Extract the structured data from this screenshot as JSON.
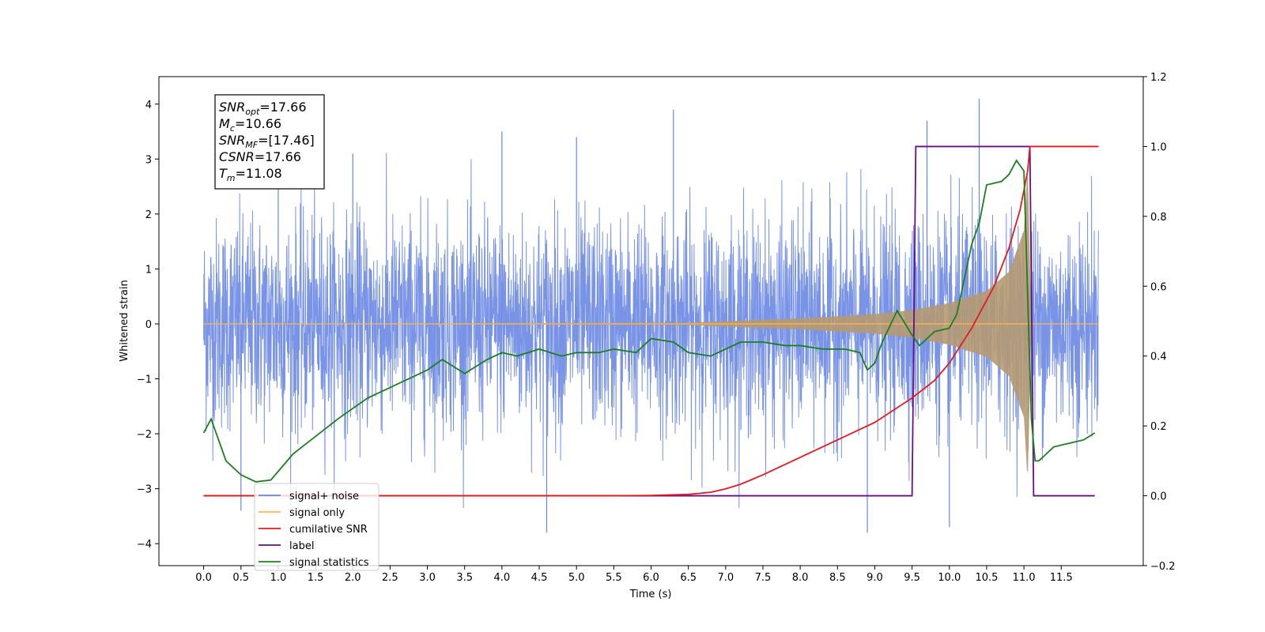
{
  "chart_data": {
    "type": "line",
    "xlabel": "Time (s)",
    "ylabel": "Whitened strain",
    "xlim": [
      -0.6,
      12.6
    ],
    "ylim": [
      -4.4,
      4.5
    ],
    "ylim_right": [
      -0.2,
      1.2
    ],
    "x_ticks": [
      "0.0",
      "0.5",
      "1.0",
      "1.5",
      "2.0",
      "2.5",
      "3.0",
      "3.5",
      "4.0",
      "4.5",
      "5.0",
      "5.5",
      "6.0",
      "6.5",
      "7.0",
      "7.5",
      "8.0",
      "8.5",
      "9.0",
      "9.5",
      "10.0",
      "10.5",
      "11.0",
      "11.5"
    ],
    "y_ticks_left": [
      "−4",
      "−3",
      "−2",
      "−1",
      "0",
      "1",
      "2",
      "3",
      "4"
    ],
    "y_ticks_right": [
      "−0.2",
      "0.0",
      "0.2",
      "0.4",
      "0.6",
      "0.8",
      "1.0",
      "1.2"
    ],
    "annotation": {
      "lines": [
        {
          "sym": "SNR",
          "sub": "opt",
          "val": "=17.66"
        },
        {
          "sym": "M",
          "sub": "c",
          "val": "=10.66"
        },
        {
          "sym": "SNR",
          "sub": "MF",
          "val": "=[17.46]"
        },
        {
          "sym": "CSNR",
          "sub": "",
          "val": "=17.66"
        },
        {
          "sym": "T",
          "sub": "m",
          "val": "=11.08"
        }
      ]
    },
    "legend": {
      "placement": "lower-left",
      "items": [
        {
          "label": "signal+ noise",
          "color": "#6a87e3"
        },
        {
          "label": "signal only",
          "color": "#ffb74d"
        },
        {
          "label": "cumilative SNR",
          "color": "#e8191b"
        },
        {
          "label": "label",
          "color": "#6a0f83"
        },
        {
          "label": "signal statistics",
          "color": "#1b7f1b"
        }
      ]
    },
    "series": [
      {
        "name": "signal+ noise",
        "axis": "left",
        "color": "#6a87e3",
        "x_range": [
          0.0,
          12.0
        ],
        "amplitude_envelope": {
          "x": [
            0,
            12
          ],
          "y": [
            3.4,
            3.4
          ]
        },
        "extreme_peaks": [
          [
            0.5,
            -3.4
          ],
          [
            1.0,
            2.9
          ],
          [
            2.0,
            3.1
          ],
          [
            4.0,
            3.5
          ],
          [
            5.0,
            3.4
          ],
          [
            6.3,
            3.9
          ],
          [
            9.7,
            3.7
          ],
          [
            10.4,
            4.1
          ],
          [
            4.6,
            -3.8
          ],
          [
            8.9,
            -3.8
          ],
          [
            10.0,
            -3.7
          ]
        ]
      },
      {
        "name": "signal only",
        "axis": "left",
        "color": "#ffb74d",
        "chirp_envelope": {
          "x": [
            0,
            6.5,
            7.0,
            8.0,
            9.0,
            9.5,
            10.0,
            10.5,
            10.8,
            11.0,
            11.05,
            11.1,
            12.0
          ],
          "y": [
            0,
            0.02,
            0.05,
            0.1,
            0.18,
            0.25,
            0.38,
            0.6,
            0.95,
            1.7,
            2.9,
            0,
            0
          ]
        }
      },
      {
        "name": "cumilative SNR",
        "axis": "right",
        "color": "#e8191b",
        "x": [
          0,
          5.5,
          6.0,
          6.5,
          6.8,
          7.0,
          7.2,
          7.5,
          8.0,
          8.5,
          9.0,
          9.5,
          9.8,
          10.0,
          10.3,
          10.6,
          10.8,
          10.95,
          11.05,
          11.08,
          11.08,
          12.0
        ],
        "y": [
          0.0,
          0.0,
          0.001,
          0.004,
          0.01,
          0.02,
          0.033,
          0.06,
          0.11,
          0.16,
          0.21,
          0.28,
          0.33,
          0.38,
          0.48,
          0.6,
          0.71,
          0.82,
          0.93,
          1.0,
          1.0,
          1.0
        ]
      },
      {
        "name": "label",
        "axis": "right",
        "color": "#6a0f83",
        "x": [
          0,
          9.5,
          9.55,
          11.08,
          11.13,
          11.95
        ],
        "y": [
          0,
          0,
          1.0,
          1.0,
          0,
          0
        ]
      },
      {
        "name": "signal statistics",
        "axis": "right",
        "color": "#1b7f1b",
        "x": [
          0,
          0.1,
          0.2,
          0.3,
          0.5,
          0.7,
          0.9,
          1.0,
          1.2,
          1.5,
          1.8,
          2.0,
          2.2,
          2.5,
          2.7,
          3.0,
          3.2,
          3.5,
          3.8,
          4.0,
          4.2,
          4.5,
          4.8,
          5.0,
          5.3,
          5.5,
          5.8,
          6.0,
          6.3,
          6.5,
          6.8,
          7.0,
          7.2,
          7.5,
          7.8,
          8.0,
          8.3,
          8.6,
          8.8,
          8.9,
          9.0,
          9.1,
          9.3,
          9.5,
          9.6,
          9.8,
          10.0,
          10.1,
          10.2,
          10.3,
          10.4,
          10.5,
          10.7,
          10.8,
          10.9,
          11.0,
          11.1,
          11.15,
          11.2,
          11.4,
          11.6,
          11.8,
          11.95
        ],
        "y": [
          0.18,
          0.22,
          0.16,
          0.1,
          0.06,
          0.04,
          0.045,
          0.07,
          0.12,
          0.17,
          0.22,
          0.25,
          0.28,
          0.31,
          0.33,
          0.36,
          0.39,
          0.35,
          0.39,
          0.41,
          0.4,
          0.42,
          0.4,
          0.41,
          0.41,
          0.42,
          0.41,
          0.45,
          0.44,
          0.41,
          0.4,
          0.42,
          0.44,
          0.44,
          0.43,
          0.43,
          0.42,
          0.42,
          0.41,
          0.36,
          0.38,
          0.44,
          0.53,
          0.46,
          0.43,
          0.47,
          0.48,
          0.52,
          0.62,
          0.72,
          0.78,
          0.89,
          0.9,
          0.92,
          0.96,
          0.93,
          0.22,
          0.1,
          0.1,
          0.14,
          0.15,
          0.16,
          0.18
        ]
      }
    ]
  }
}
